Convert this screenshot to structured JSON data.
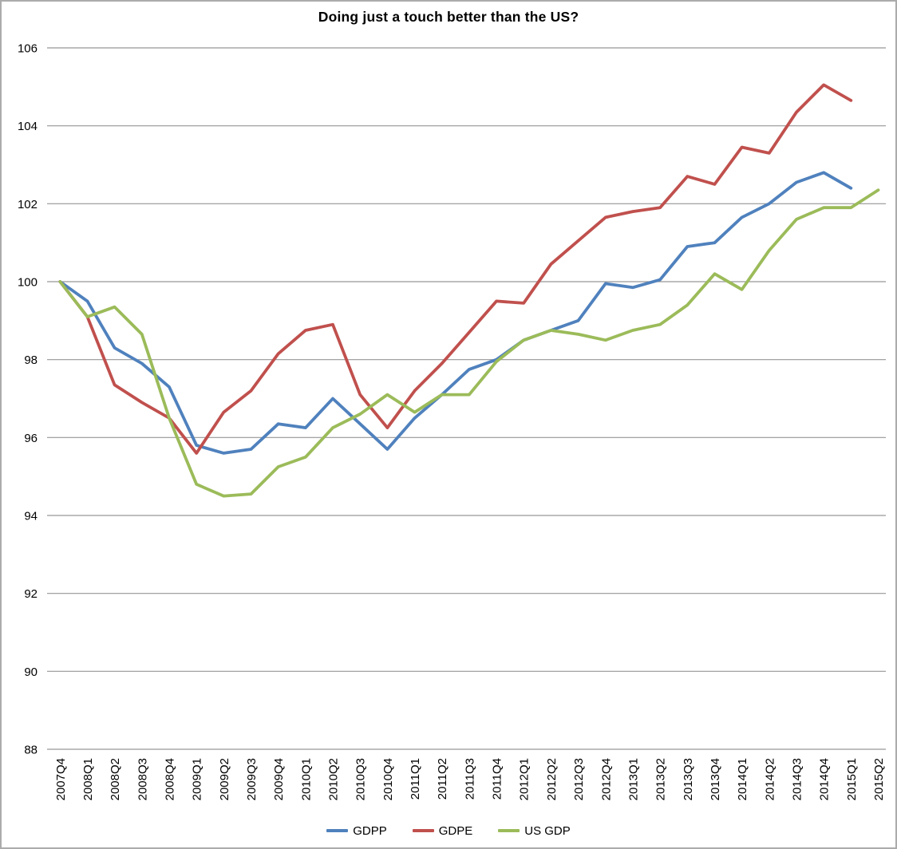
{
  "chart_data": {
    "type": "line",
    "title": "Doing just a touch better than the US?",
    "categories": [
      "2007Q4",
      "2008Q1",
      "2008Q2",
      "2008Q3",
      "2008Q4",
      "2009Q1",
      "2009Q2",
      "2009Q3",
      "2009Q4",
      "2010Q1",
      "2010Q2",
      "2010Q3",
      "2010Q4",
      "2011Q1",
      "2011Q2",
      "2011Q3",
      "2011Q4",
      "2012Q1",
      "2012Q2",
      "2012Q3",
      "2012Q4",
      "2013Q1",
      "2013Q2",
      "2013Q3",
      "2013Q4",
      "2014Q1",
      "2014Q2",
      "2014Q3",
      "2014Q4",
      "2015Q1",
      "2015Q2"
    ],
    "series": [
      {
        "name": "GDPP",
        "color": "#4F81BD",
        "values": [
          100,
          99.5,
          98.3,
          97.9,
          97.3,
          95.8,
          95.6,
          95.7,
          96.35,
          96.25,
          97,
          96.35,
          95.7,
          96.5,
          97.1,
          97.75,
          98,
          98.5,
          98.75,
          99,
          99.95,
          99.85,
          100.05,
          100.9,
          101,
          101.65,
          102,
          102.55,
          102.8,
          102.4,
          null
        ]
      },
      {
        "name": "GDPE",
        "color": "#C0504D",
        "values": [
          100,
          99.1,
          97.35,
          96.9,
          96.5,
          95.6,
          96.65,
          97.2,
          98.15,
          98.75,
          98.9,
          97.1,
          96.25,
          97.2,
          97.9,
          98.7,
          99.5,
          99.45,
          100.45,
          101.05,
          101.65,
          101.8,
          101.9,
          102.7,
          102.5,
          103.45,
          103.3,
          104.35,
          105.05,
          104.65,
          null
        ]
      },
      {
        "name": "US GDP",
        "color": "#9BBB59",
        "values": [
          100,
          99.1,
          99.35,
          98.65,
          96.5,
          94.8,
          94.5,
          94.55,
          95.25,
          95.5,
          96.25,
          96.6,
          97.1,
          96.65,
          97.1,
          97.1,
          97.95,
          98.5,
          98.75,
          98.65,
          98.5,
          98.75,
          98.9,
          99.4,
          100.2,
          99.8,
          100.8,
          101.6,
          101.9,
          101.9,
          102.35
        ]
      }
    ],
    "ylim": [
      88,
      106
    ],
    "ytick_step": 2,
    "yticks": [
      "106",
      "104",
      "102",
      "100",
      "98",
      "96",
      "94",
      "92",
      "90",
      "88"
    ],
    "grid": "horizontal",
    "legend_position": "bottom",
    "x_label_rotation": -90,
    "colors": {
      "gridline": "#969696",
      "border": "#ababab",
      "text": "#000000",
      "background": "#ffffff"
    }
  }
}
